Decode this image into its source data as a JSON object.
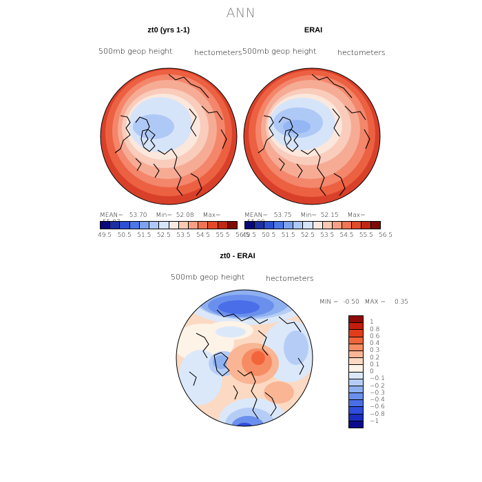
{
  "title": "ANN",
  "panels": [
    {
      "title": "zt0 (yrs 1-1)",
      "variable": "500mb geop height",
      "units": "hectometers",
      "stats": {
        "mean_label": "MEAN=",
        "mean": "53.70",
        "min_label": "Min=",
        "min": "52.08",
        "max_label": "Max=",
        "max": "55.87"
      }
    },
    {
      "title": "ERAI",
      "variable": "500mb geop height",
      "units": "hectometers",
      "stats": {
        "mean_label": "MEAN=",
        "mean": "53.75",
        "min_label": "Min=",
        "min": "52.15",
        "max_label": "Max=",
        "max": "55.99"
      }
    }
  ],
  "field_colorbar": {
    "colors": [
      "#08087a",
      "#1c2fa3",
      "#2d4fd1",
      "#4d77e8",
      "#7ea2f0",
      "#afc9f6",
      "#d6e4fa",
      "#fbe9e0",
      "#f9c8b3",
      "#f5a084",
      "#f07552",
      "#e04b28",
      "#c02812",
      "#7e0a06"
    ],
    "labels": [
      "49.5",
      "50.5",
      "51.5",
      "52.5",
      "53.5",
      "54.5",
      "55.5",
      "56.5"
    ]
  },
  "diff_panel": {
    "title": "zt0 - ERAI",
    "variable": "500mb geop height",
    "units": "hectometers",
    "stats": {
      "min_label": "MIN =",
      "min": "-0.50",
      "max_label": "MAX =",
      "max": "0.35"
    }
  },
  "diff_colorbar": {
    "colors": [
      "#8e0a08",
      "#c21d0e",
      "#e23d1a",
      "#f2643a",
      "#f68c63",
      "#f9b594",
      "#fcd9c2",
      "#fdf3e7",
      "#dbe8fa",
      "#b5cdf6",
      "#8eb0f1",
      "#6a8fed",
      "#4a6ee8",
      "#2f4cdc",
      "#1a2dbe",
      "#0c0a8c"
    ],
    "labels": [
      "1",
      "0.8",
      "0.6",
      "0.4",
      "0.3",
      "0.2",
      "0.1",
      "0",
      "−0.1",
      "−0.2",
      "−0.3",
      "−0.4",
      "−0.6",
      "−0.8",
      "−1"
    ]
  }
}
